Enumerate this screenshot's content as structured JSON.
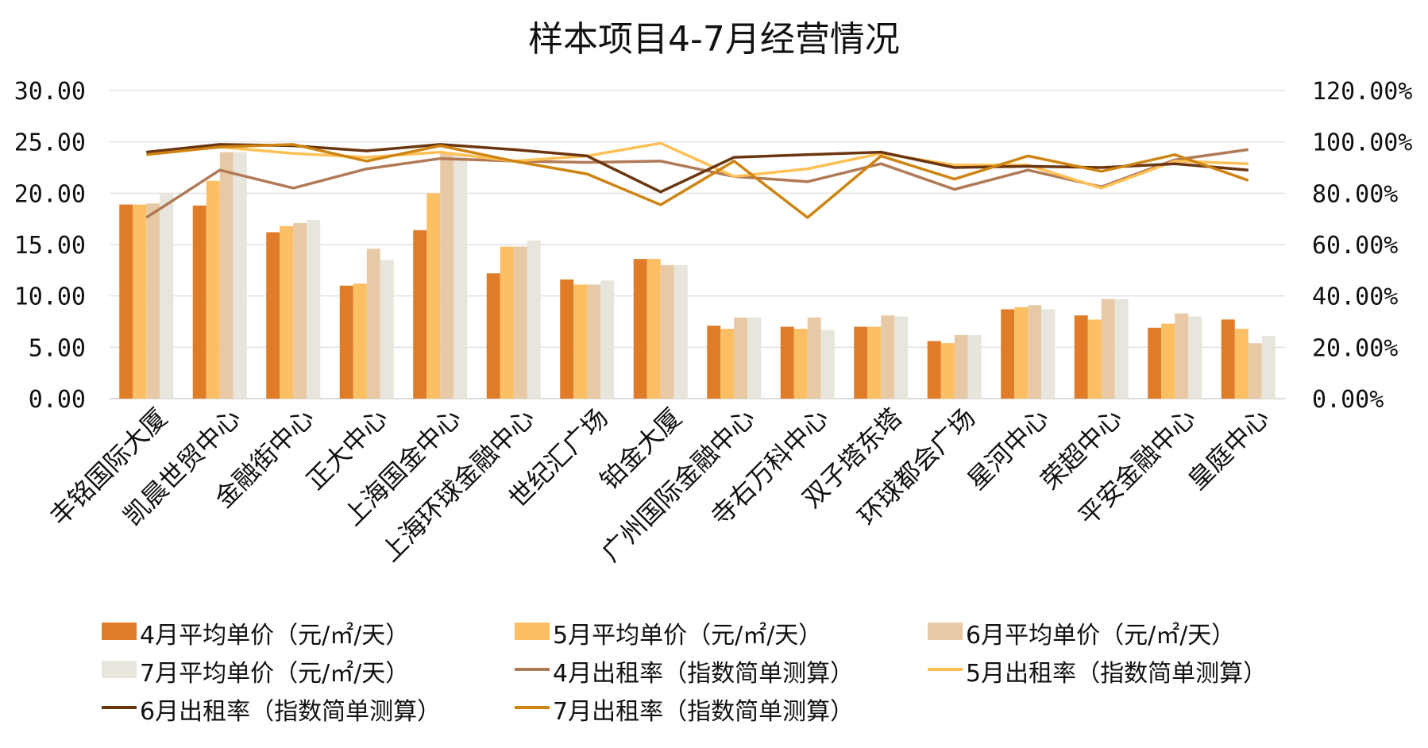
{
  "chart_data": {
    "type": "bar",
    "title": "样本项目4-7月经营情况",
    "categories": [
      "丰铭国际大厦",
      "凯晨世贸中心",
      "金融街中心",
      "正大中心",
      "上海国金中心",
      "上海环球金融中心",
      "世纪汇广场",
      "铂金大厦",
      "广州国际金融中心",
      "寺右万科中心",
      "双子塔东塔",
      "环球都会广场",
      "星河中心",
      "荣超中心",
      "平安金融中心",
      "皇庭中心"
    ],
    "y_left": {
      "ticks": [
        "0.00",
        "5.00",
        "10.00",
        "15.00",
        "20.00",
        "25.00",
        "30.00"
      ],
      "ylim": [
        0,
        30
      ]
    },
    "y_right": {
      "ticks": [
        "0.00%",
        "20.00%",
        "40.00%",
        "60.00%",
        "80.00%",
        "100.00%",
        "120.00%"
      ],
      "ylim": [
        0,
        120
      ]
    },
    "grid": true,
    "legend_position": "bottom",
    "bar_series": [
      {
        "name": "4月平均单价（元/㎡/天）",
        "color": "#E07B28",
        "values": [
          18.9,
          18.8,
          16.2,
          11.0,
          16.4,
          12.2,
          11.6,
          13.6,
          7.1,
          7.0,
          7.0,
          5.6,
          8.7,
          8.1,
          6.9,
          7.7
        ]
      },
      {
        "name": "5月平均单价（元/㎡/天）",
        "color": "#FCBF63",
        "values": [
          18.9,
          21.2,
          16.8,
          11.2,
          20.0,
          14.8,
          11.1,
          13.6,
          6.8,
          6.8,
          7.0,
          5.4,
          8.9,
          7.7,
          7.3,
          6.8
        ]
      },
      {
        "name": "6月平均单价（元/㎡/天）",
        "color": "#E8C9A5",
        "values": [
          19.0,
          24.0,
          17.1,
          14.6,
          24.0,
          14.8,
          11.1,
          13.0,
          7.9,
          7.9,
          8.1,
          6.2,
          9.1,
          9.7,
          8.3,
          5.4
        ]
      },
      {
        "name": "7月平均单价（元/㎡/天）",
        "color": "#E8E5DC",
        "values": [
          20.0,
          24.0,
          17.4,
          13.5,
          23.8,
          15.4,
          11.5,
          13.0,
          7.9,
          6.7,
          8.0,
          6.2,
          8.7,
          9.7,
          8.0,
          6.1
        ]
      }
    ],
    "line_series": [
      {
        "name": "4月出租率（指数简单测算）",
        "color": "#B07A56",
        "values": [
          70.5,
          89.0,
          82.0,
          89.5,
          93.5,
          92.5,
          92.0,
          92.5,
          86.5,
          84.5,
          91.5,
          81.5,
          89.0,
          82.5,
          93.0,
          97.0
        ]
      },
      {
        "name": "5月出租率（指数简单测算）",
        "color": "#FFC155",
        "values": [
          95.5,
          98.0,
          95.5,
          94.0,
          96.0,
          92.5,
          94.5,
          99.5,
          86.5,
          89.5,
          95.5,
          91.0,
          91.0,
          82.0,
          92.5,
          91.5
        ]
      },
      {
        "name": "6月出租率（指数简单测算）",
        "color": "#6B360F",
        "values": [
          96.0,
          99.0,
          98.5,
          96.5,
          99.0,
          97.0,
          94.5,
          80.5,
          94.0,
          95.0,
          96.0,
          90.0,
          90.5,
          90.0,
          91.5,
          89.0
        ]
      },
      {
        "name": "7月出租率（指数简单测算）",
        "color": "#CE8412",
        "values": [
          95.0,
          98.0,
          99.0,
          92.5,
          98.5,
          92.5,
          87.5,
          75.5,
          92.5,
          70.5,
          94.5,
          85.5,
          94.5,
          88.5,
          95.0,
          85.0
        ]
      }
    ]
  }
}
